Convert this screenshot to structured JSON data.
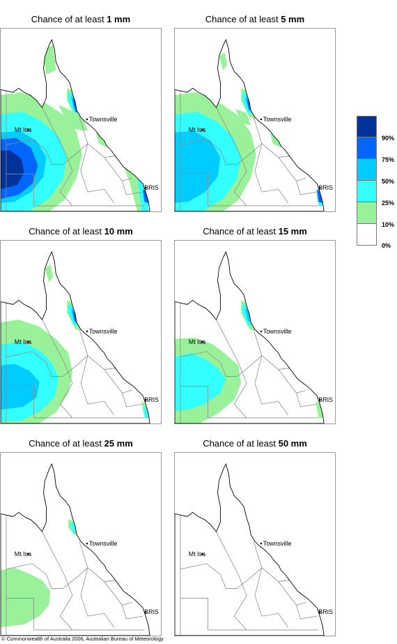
{
  "colors": {
    "c10": "#99f299",
    "c25": "#33ffff",
    "c50": "#00ccff",
    "c75": "#0066ff",
    "c90": "#003399",
    "c0": "#ffffff",
    "boundary": "#8c8c8c",
    "coast": "#000000"
  },
  "towns": {
    "townsville": "Townsville",
    "mtisa": "Mt Isa",
    "bris": "BRIS"
  },
  "panels": [
    {
      "prefix": "Chance of at least",
      "value": "1 mm",
      "level": 5
    },
    {
      "prefix": "Chance of at least",
      "value": "5 mm",
      "level": 4
    },
    {
      "prefix": "Chance of at least",
      "value": "10 mm",
      "level": 3
    },
    {
      "prefix": "Chance of at least",
      "value": "15 mm",
      "level": 2
    },
    {
      "prefix": "Chance of at least",
      "value": "25 mm",
      "level": 1
    },
    {
      "prefix": "Chance of at least",
      "value": "50 mm",
      "level": 0
    }
  ],
  "legend": [
    {
      "label": "90%",
      "color": "#003399"
    },
    {
      "label": "75%",
      "color": "#0066ff"
    },
    {
      "label": "50%",
      "color": "#00ccff"
    },
    {
      "label": "25%",
      "color": "#33ffff"
    },
    {
      "label": "10%",
      "color": "#99f299"
    },
    {
      "label": "0%",
      "color": "#ffffff"
    }
  ],
  "footer": "© Commonwealth of Australia 2006, Australian Bureau of Meteorology"
}
